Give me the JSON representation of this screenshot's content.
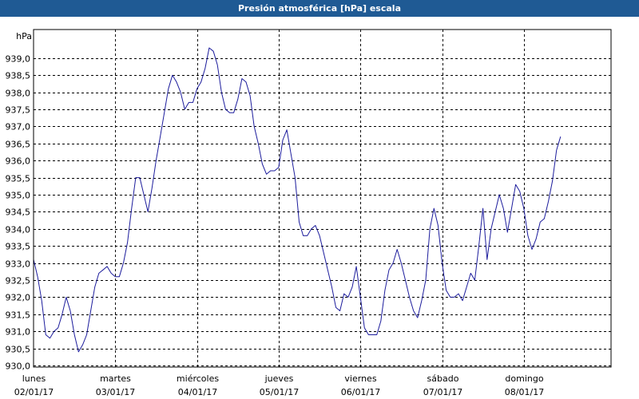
{
  "window": {
    "title": "Presión atmosférica [hPa] escala"
  },
  "chart_data": {
    "type": "line",
    "title": "Presión atmosférica [hPa] escala",
    "ylabel": "hPa",
    "xlabel": "",
    "ylim": [
      930.0,
      939.6
    ],
    "xlim": [
      0,
      7.05
    ],
    "grid": true,
    "y_ticks": [
      "930,0",
      "930,5",
      "931,0",
      "931,5",
      "932,0",
      "932,5",
      "933,0",
      "933,5",
      "934,0",
      "934,5",
      "935,0",
      "935,5",
      "936,0",
      "936,5",
      "937,0",
      "937,5",
      "938,0",
      "938,5",
      "939,0"
    ],
    "y_tick_values": [
      930.0,
      930.5,
      931.0,
      931.5,
      932.0,
      932.5,
      933.0,
      933.5,
      934.0,
      934.5,
      935.0,
      935.5,
      936.0,
      936.5,
      937.0,
      937.5,
      938.0,
      938.5,
      939.0
    ],
    "x_ticks": [
      {
        "day": "lunes",
        "date": "02/01/17"
      },
      {
        "day": "martes",
        "date": "03/01/17"
      },
      {
        "day": "miércoles",
        "date": "04/01/17"
      },
      {
        "day": "jueves",
        "date": "05/01/17"
      },
      {
        "day": "viernes",
        "date": "06/01/17"
      },
      {
        "day": "sábado",
        "date": "07/01/17"
      },
      {
        "day": "domingo",
        "date": "08/01/17"
      }
    ],
    "line_color": "#1c1c9c",
    "series": [
      {
        "values": [
          [
            0.0,
            933.1
          ],
          [
            0.05,
            932.6
          ],
          [
            0.1,
            931.9
          ],
          [
            0.15,
            930.9
          ],
          [
            0.2,
            930.8
          ],
          [
            0.25,
            931.0
          ],
          [
            0.3,
            931.1
          ],
          [
            0.35,
            931.5
          ],
          [
            0.4,
            932.0
          ],
          [
            0.45,
            931.6
          ],
          [
            0.5,
            930.9
          ],
          [
            0.55,
            930.4
          ],
          [
            0.6,
            930.6
          ],
          [
            0.65,
            930.9
          ],
          [
            0.7,
            931.6
          ],
          [
            0.75,
            932.3
          ],
          [
            0.8,
            932.7
          ],
          [
            0.85,
            932.8
          ],
          [
            0.9,
            932.9
          ],
          [
            0.95,
            932.7
          ],
          [
            1.0,
            932.6
          ],
          [
            1.05,
            932.6
          ],
          [
            1.1,
            933.0
          ],
          [
            1.15,
            933.6
          ],
          [
            1.2,
            934.6
          ],
          [
            1.25,
            935.5
          ],
          [
            1.3,
            935.5
          ],
          [
            1.35,
            935.0
          ],
          [
            1.4,
            934.5
          ],
          [
            1.45,
            935.2
          ],
          [
            1.5,
            936.0
          ],
          [
            1.55,
            936.7
          ],
          [
            1.6,
            937.4
          ],
          [
            1.65,
            938.1
          ],
          [
            1.7,
            938.5
          ],
          [
            1.75,
            938.3
          ],
          [
            1.8,
            938.0
          ],
          [
            1.85,
            937.5
          ],
          [
            1.9,
            937.7
          ],
          [
            1.95,
            937.7
          ],
          [
            2.0,
            938.1
          ],
          [
            2.05,
            938.3
          ],
          [
            2.1,
            938.7
          ],
          [
            2.15,
            939.3
          ],
          [
            2.2,
            939.2
          ],
          [
            2.25,
            938.8
          ],
          [
            2.3,
            938.0
          ],
          [
            2.35,
            937.5
          ],
          [
            2.4,
            937.4
          ],
          [
            2.45,
            937.4
          ],
          [
            2.5,
            937.8
          ],
          [
            2.55,
            938.4
          ],
          [
            2.6,
            938.3
          ],
          [
            2.65,
            937.9
          ],
          [
            2.7,
            937.0
          ],
          [
            2.75,
            936.5
          ],
          [
            2.8,
            935.9
          ],
          [
            2.85,
            935.6
          ],
          [
            2.9,
            935.7
          ],
          [
            2.95,
            935.7
          ],
          [
            3.0,
            935.8
          ],
          [
            3.05,
            936.6
          ],
          [
            3.1,
            936.9
          ],
          [
            3.15,
            936.2
          ],
          [
            3.2,
            935.5
          ],
          [
            3.25,
            934.2
          ],
          [
            3.3,
            933.8
          ],
          [
            3.35,
            933.8
          ],
          [
            3.4,
            934.0
          ],
          [
            3.45,
            934.1
          ],
          [
            3.5,
            933.8
          ],
          [
            3.55,
            933.3
          ],
          [
            3.6,
            932.8
          ],
          [
            3.65,
            932.3
          ],
          [
            3.7,
            931.7
          ],
          [
            3.75,
            931.6
          ],
          [
            3.8,
            932.1
          ],
          [
            3.85,
            932.0
          ],
          [
            3.9,
            932.3
          ],
          [
            3.95,
            932.9
          ],
          [
            4.0,
            932.0
          ],
          [
            4.05,
            931.1
          ],
          [
            4.1,
            930.9
          ],
          [
            4.15,
            930.9
          ],
          [
            4.2,
            930.9
          ],
          [
            4.25,
            931.3
          ],
          [
            4.3,
            932.2
          ],
          [
            4.35,
            932.8
          ],
          [
            4.4,
            933.0
          ],
          [
            4.45,
            933.4
          ],
          [
            4.5,
            933.0
          ],
          [
            4.55,
            932.5
          ],
          [
            4.6,
            932.0
          ],
          [
            4.65,
            931.6
          ],
          [
            4.7,
            931.4
          ],
          [
            4.75,
            931.9
          ],
          [
            4.8,
            932.5
          ],
          [
            4.85,
            934.0
          ],
          [
            4.9,
            934.6
          ],
          [
            4.95,
            934.1
          ],
          [
            5.0,
            933.0
          ],
          [
            5.05,
            932.2
          ],
          [
            5.1,
            932.0
          ],
          [
            5.15,
            932.0
          ],
          [
            5.2,
            932.1
          ],
          [
            5.25,
            931.9
          ],
          [
            5.3,
            932.3
          ],
          [
            5.35,
            932.7
          ],
          [
            5.4,
            932.5
          ],
          [
            5.45,
            933.5
          ],
          [
            5.5,
            934.6
          ],
          [
            5.55,
            933.1
          ],
          [
            5.6,
            934.0
          ],
          [
            5.65,
            934.5
          ],
          [
            5.7,
            935.0
          ],
          [
            5.75,
            934.6
          ],
          [
            5.8,
            933.9
          ],
          [
            5.85,
            934.6
          ],
          [
            5.9,
            935.3
          ],
          [
            5.95,
            935.1
          ],
          [
            6.0,
            934.6
          ],
          [
            6.05,
            933.8
          ],
          [
            6.1,
            933.4
          ],
          [
            6.15,
            933.7
          ],
          [
            6.2,
            934.2
          ],
          [
            6.25,
            934.3
          ],
          [
            6.3,
            934.8
          ],
          [
            6.35,
            935.4
          ],
          [
            6.4,
            936.3
          ],
          [
            6.45,
            936.7
          ]
        ]
      }
    ]
  }
}
